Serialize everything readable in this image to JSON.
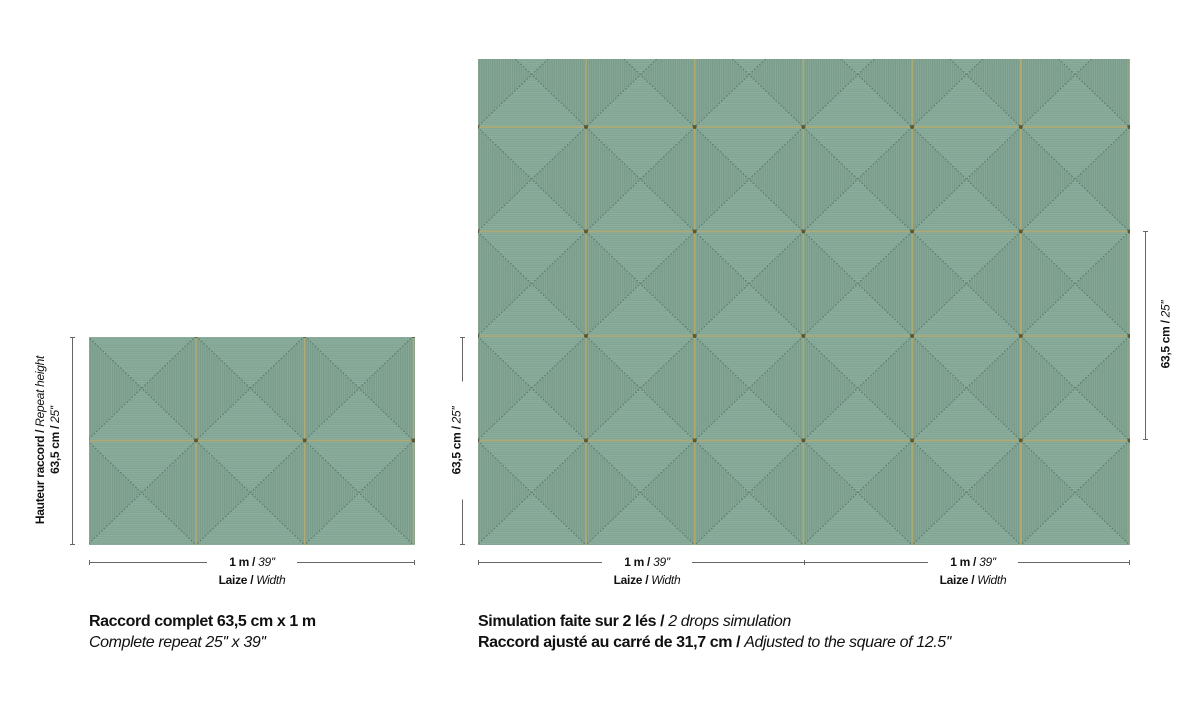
{
  "colors": {
    "base": "#82a594",
    "shade": "#7a9c8b",
    "seam": "#b9ab6a",
    "diagonal": "#4f6f60"
  },
  "small": {
    "height_fr": "Hauteur raccord",
    "height_en": "Repeat height",
    "height_cm": "63,5 cm",
    "height_in": "25''",
    "width_m": "1 m",
    "width_in": "39''",
    "width_fr": "Laize",
    "width_en": "Width",
    "caption_fr": "Raccord complet 63,5 cm x 1 m",
    "caption_en": "Complete repeat 25'' x 39''"
  },
  "large": {
    "left_height_cm": "63,5 cm",
    "left_height_in": "25''",
    "right_height_cm": "63,5 cm",
    "right_height_in": "25''",
    "drops": [
      {
        "width_m": "1 m",
        "width_in": "39''",
        "width_fr": "Laize",
        "width_en": "Width"
      },
      {
        "width_m": "1 m",
        "width_in": "39''",
        "width_fr": "Laize",
        "width_en": "Width"
      }
    ],
    "line1_fr": "Simulation faite sur 2 lés",
    "line1_en": "2 drops simulation",
    "line2_fr": "Raccord ajusté au carré de 31,7 cm",
    "line2_en": "Adjusted to the square of 12.5''"
  },
  "sep": " / "
}
